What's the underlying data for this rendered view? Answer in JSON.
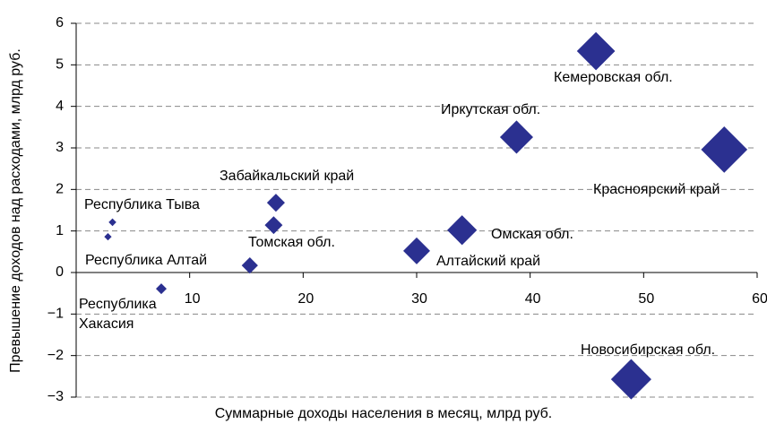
{
  "chart_data": {
    "type": "scatter",
    "xlabel": "Суммарные доходы населения в месяц, млрд руб.",
    "ylabel": "Превышение доходов над расходами, млрд руб.",
    "categories": [
      "Кемеровская обл.",
      "Иркутская  обл.",
      "Красноярский край",
      "Забайкальский край",
      "Томская обл.",
      "Омская обл.",
      "Алтайский край",
      "Республика Тыва",
      null,
      "Республика Алтай",
      "Республика Хакасия",
      "Новосибирская обл."
    ],
    "x": [
      45.8,
      38.8,
      57.1,
      17.6,
      17.4,
      34.0,
      30.0,
      3.2,
      2.8,
      15.3,
      7.5,
      48.9
    ],
    "y": [
      5.33,
      3.26,
      2.96,
      1.68,
      1.14,
      1.02,
      0.52,
      1.21,
      0.86,
      0.17,
      -0.39,
      -2.57
    ],
    "color": "#2b3090",
    "xlim": [
      0,
      60
    ],
    "xticks": [
      10,
      20,
      30,
      40,
      50,
      60
    ],
    "ylim": [
      -3,
      6
    ],
    "yticks": [
      {
        "value": -3,
        "label": "−3"
      },
      {
        "value": -2,
        "label": "−2"
      },
      {
        "value": -1,
        "label": "−1"
      },
      0,
      1,
      2,
      3,
      4,
      5,
      6
    ],
    "grid": true
  }
}
